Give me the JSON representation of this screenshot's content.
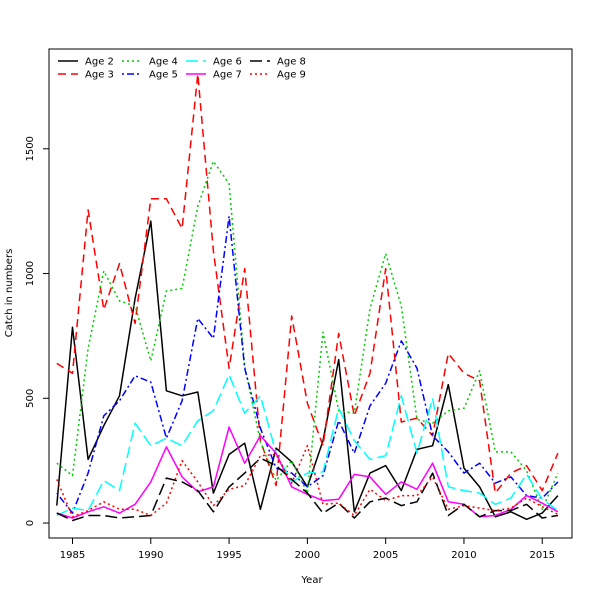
{
  "chart_data": {
    "type": "line",
    "title": "",
    "xlabel": "Year",
    "ylabel": "Catch in numbers",
    "xlim": [
      1983.5,
      2016.9
    ],
    "ylim": [
      -60,
      1900
    ],
    "x_ticks": [
      1985,
      1990,
      1995,
      2000,
      2005,
      2010,
      2015
    ],
    "y_ticks": [
      0,
      500,
      1000,
      1500
    ],
    "grid": false,
    "legend_position": "top-left",
    "x": [
      1984,
      1985,
      1986,
      1987,
      1988,
      1989,
      1990,
      1991,
      1992,
      1993,
      1994,
      1995,
      1996,
      1997,
      1998,
      1999,
      2000,
      2001,
      2002,
      2003,
      2004,
      2005,
      2006,
      2007,
      2008,
      2009,
      2010,
      2011,
      2012,
      2013,
      2014,
      2015,
      2016
    ],
    "series": [
      {
        "name": "Age 2",
        "color": "#000000",
        "dash": "solid",
        "values": [
          70,
          785,
          255,
          390,
          510,
          900,
          1210,
          530,
          510,
          525,
          120,
          275,
          320,
          55,
          300,
          245,
          145,
          330,
          655,
          45,
          200,
          230,
          130,
          295,
          310,
          555,
          220,
          145,
          25,
          45,
          15,
          40,
          110
        ]
      },
      {
        "name": "Age 3",
        "color": "#ff0000",
        "dash": "dashed",
        "values": [
          640,
          600,
          1255,
          855,
          1040,
          800,
          1300,
          1300,
          1180,
          1800,
          1090,
          620,
          1020,
          330,
          150,
          830,
          480,
          310,
          760,
          430,
          600,
          1020,
          405,
          420,
          350,
          680,
          600,
          570,
          120,
          200,
          230,
          130,
          280
        ]
      },
      {
        "name": "Age 4",
        "color": "#00cc00",
        "dash": "dotted",
        "values": [
          240,
          190,
          700,
          1010,
          890,
          870,
          650,
          930,
          940,
          1270,
          1450,
          1360,
          630,
          325,
          170,
          250,
          120,
          765,
          450,
          440,
          860,
          1080,
          870,
          415,
          400,
          450,
          460,
          610,
          285,
          285,
          210,
          55,
          200
        ]
      },
      {
        "name": "Age 5",
        "color": "#0000ff",
        "dash": "dotdash",
        "values": [
          120,
          40,
          200,
          430,
          490,
          590,
          565,
          340,
          490,
          820,
          740,
          1230,
          620,
          380,
          220,
          200,
          145,
          190,
          410,
          280,
          470,
          560,
          730,
          620,
          350,
          285,
          200,
          240,
          160,
          185,
          110,
          100,
          165
        ]
      },
      {
        "name": "Age 6",
        "color": "#00ffff",
        "dash": "longdash",
        "values": [
          30,
          60,
          50,
          170,
          130,
          400,
          310,
          340,
          310,
          410,
          450,
          595,
          440,
          510,
          280,
          165,
          200,
          205,
          460,
          330,
          255,
          270,
          510,
          280,
          500,
          145,
          130,
          120,
          75,
          100,
          195,
          95,
          50
        ]
      },
      {
        "name": "Age 7",
        "color": "#ff00ff",
        "dash": "solid",
        "values": [
          40,
          20,
          45,
          65,
          40,
          75,
          165,
          305,
          185,
          125,
          145,
          385,
          240,
          350,
          280,
          145,
          115,
          90,
          95,
          195,
          185,
          115,
          165,
          135,
          240,
          85,
          75,
          25,
          30,
          55,
          110,
          80,
          45
        ]
      },
      {
        "name": "Age 8",
        "color": "#000000",
        "dash": "longdash",
        "values": [
          40,
          10,
          30,
          30,
          20,
          25,
          30,
          180,
          165,
          130,
          45,
          145,
          200,
          260,
          230,
          175,
          120,
          40,
          80,
          20,
          85,
          100,
          70,
          85,
          200,
          30,
          75,
          25,
          50,
          50,
          75,
          20,
          30
        ]
      },
      {
        "name": "Age 9",
        "color": "#ff0000",
        "dash": "dotted",
        "values": [
          175,
          25,
          50,
          85,
          55,
          55,
          30,
          80,
          250,
          165,
          70,
          135,
          150,
          270,
          275,
          160,
          310,
          75,
          80,
          30,
          135,
          90,
          110,
          110,
          185,
          55,
          70,
          60,
          50,
          60,
          100,
          65,
          35
        ]
      }
    ]
  }
}
